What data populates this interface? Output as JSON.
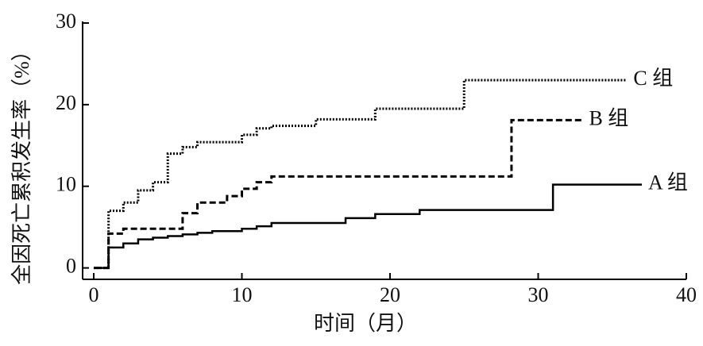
{
  "chart_data": {
    "type": "step-line",
    "x_label": "时间（月）",
    "y_label": "全因死亡累积发生率（%）",
    "xlim": [
      -0.75,
      40
    ],
    "ylim": [
      -1.4,
      30
    ],
    "xticks": [
      0,
      10,
      20,
      30,
      40
    ],
    "yticks": [
      0,
      10,
      20,
      30
    ],
    "series": [
      {
        "name": "A 组",
        "color": "#000000",
        "style": "solid",
        "x": [
          0,
          1,
          2,
          3,
          4,
          5,
          6,
          7,
          8,
          10,
          11,
          12,
          17,
          19,
          22,
          31,
          37
        ],
        "values": [
          0,
          2.5,
          3.0,
          3.5,
          3.7,
          3.9,
          4.1,
          4.3,
          4.5,
          4.8,
          5.1,
          5.5,
          6.1,
          6.6,
          7.1,
          10.2,
          10.2
        ]
      },
      {
        "name": "B 组",
        "color": "#000000",
        "style": "dashed",
        "x": [
          0,
          1,
          2,
          6,
          7,
          9,
          10,
          11,
          12,
          28.2,
          33
        ],
        "values": [
          0,
          4.2,
          4.8,
          6.7,
          8.0,
          8.8,
          9.7,
          10.5,
          11.2,
          18.1,
          18.1
        ]
      },
      {
        "name": "C 组",
        "color": "#000000",
        "style": "dotted",
        "x": [
          0,
          1,
          2,
          3,
          4,
          5,
          6,
          7,
          10,
          11,
          12,
          15,
          19,
          25,
          36
        ],
        "values": [
          0,
          7.0,
          8.0,
          9.5,
          10.5,
          14.0,
          14.8,
          15.4,
          16.3,
          17.1,
          17.4,
          18.2,
          19.5,
          23.0,
          23.0
        ]
      }
    ]
  }
}
